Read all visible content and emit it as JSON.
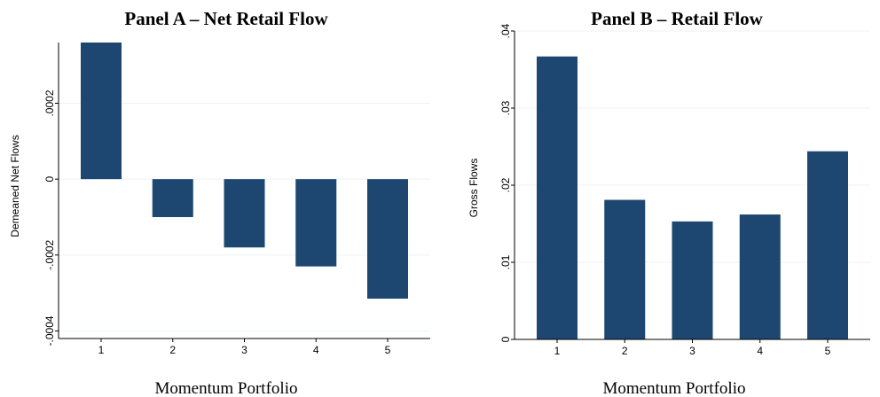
{
  "chart_data": [
    {
      "type": "bar",
      "title": "Panel A – Net Retail Flow",
      "xlabel": "Momentum Portfolio",
      "ylabel": "Demeaned Net Flows",
      "categories": [
        "1",
        "2",
        "3",
        "4",
        "5"
      ],
      "values": [
        0.00036,
        -0.0001,
        -0.00018,
        -0.00023,
        -0.000315
      ],
      "ylim": [
        -0.00042,
        0.00036
      ],
      "yticks": [
        -0.0004,
        -0.0002,
        0,
        0.0002
      ],
      "ytick_labels": [
        "-.0004",
        "-.0002",
        "0",
        ".0002"
      ],
      "bar_color": "#1d4770",
      "grid": true
    },
    {
      "type": "bar",
      "title": "Panel B – Retail Flow",
      "xlabel": "Momentum Portfolio",
      "ylabel": "Gross Flows",
      "categories": [
        "1",
        "2",
        "3",
        "4",
        "5"
      ],
      "values": [
        0.0367,
        0.0181,
        0.0153,
        0.0162,
        0.0244
      ],
      "ylim": [
        0,
        0.04
      ],
      "yticks": [
        0,
        0.01,
        0.02,
        0.03,
        0.04
      ],
      "ytick_labels": [
        "0",
        ".01",
        ".02",
        ".03",
        ".04"
      ],
      "bar_color": "#1d4770",
      "grid": true
    }
  ]
}
